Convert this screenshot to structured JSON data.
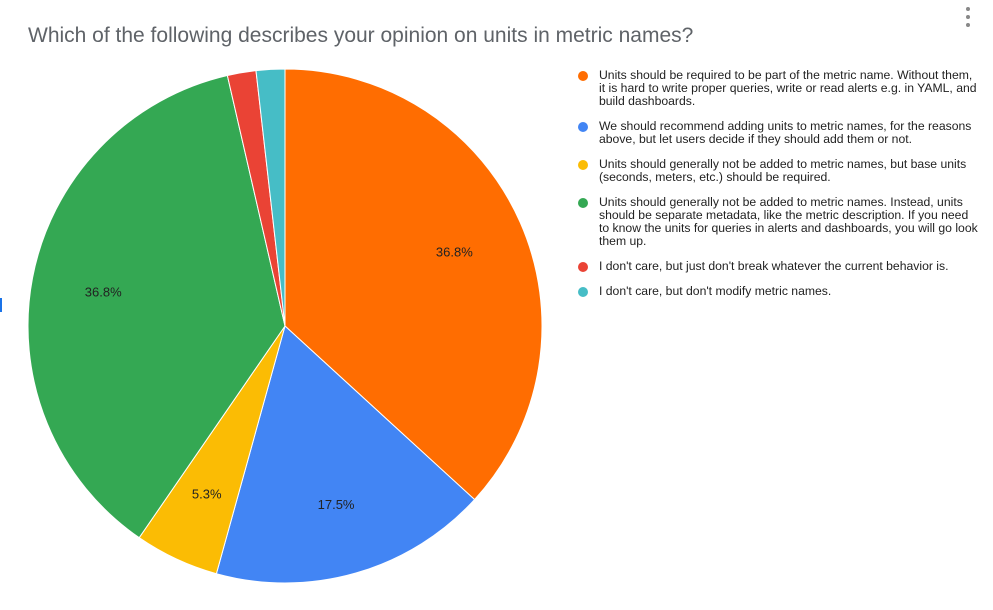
{
  "chart_data": {
    "type": "pie",
    "title": "Which of the following describes your opinion on units in metric names?",
    "legend_position": "right",
    "start": "top, clockwise",
    "slices": [
      {
        "label": "Units should be required to be part of the metric name. Without them, it is hard to write proper queries, write or read alerts e.g. in YAML, and build dashboards.",
        "value": 36.8,
        "data_label": "36.8%",
        "color": "#ff6d01"
      },
      {
        "label": "We should recommend adding units to metric names, for the reasons above, but let users decide if they should add them or not.",
        "value": 17.5,
        "data_label": "17.5%",
        "color": "#4285f4"
      },
      {
        "label": "Units should generally not be added to metric names, but base units (seconds, meters, etc.) should be required.",
        "value": 5.3,
        "data_label": "5.3%",
        "color": "#fbbc04"
      },
      {
        "label": "Units should generally not be added to metric names. Instead, units should be separate metadata, like the metric description. If you need to know the units for queries in alerts and dashboards, you will go look them up.",
        "value": 36.8,
        "data_label": "36.8%",
        "color": "#34a853"
      },
      {
        "label": "I don't care, but just don't break whatever the current behavior is.",
        "value": 1.8,
        "data_label": "",
        "color": "#ea4335"
      },
      {
        "label": "I don't care, but don't modify metric names.",
        "value": 1.8,
        "data_label": "",
        "color": "#46bdc6"
      }
    ]
  },
  "icons": {
    "menu": "more-vert-icon"
  }
}
